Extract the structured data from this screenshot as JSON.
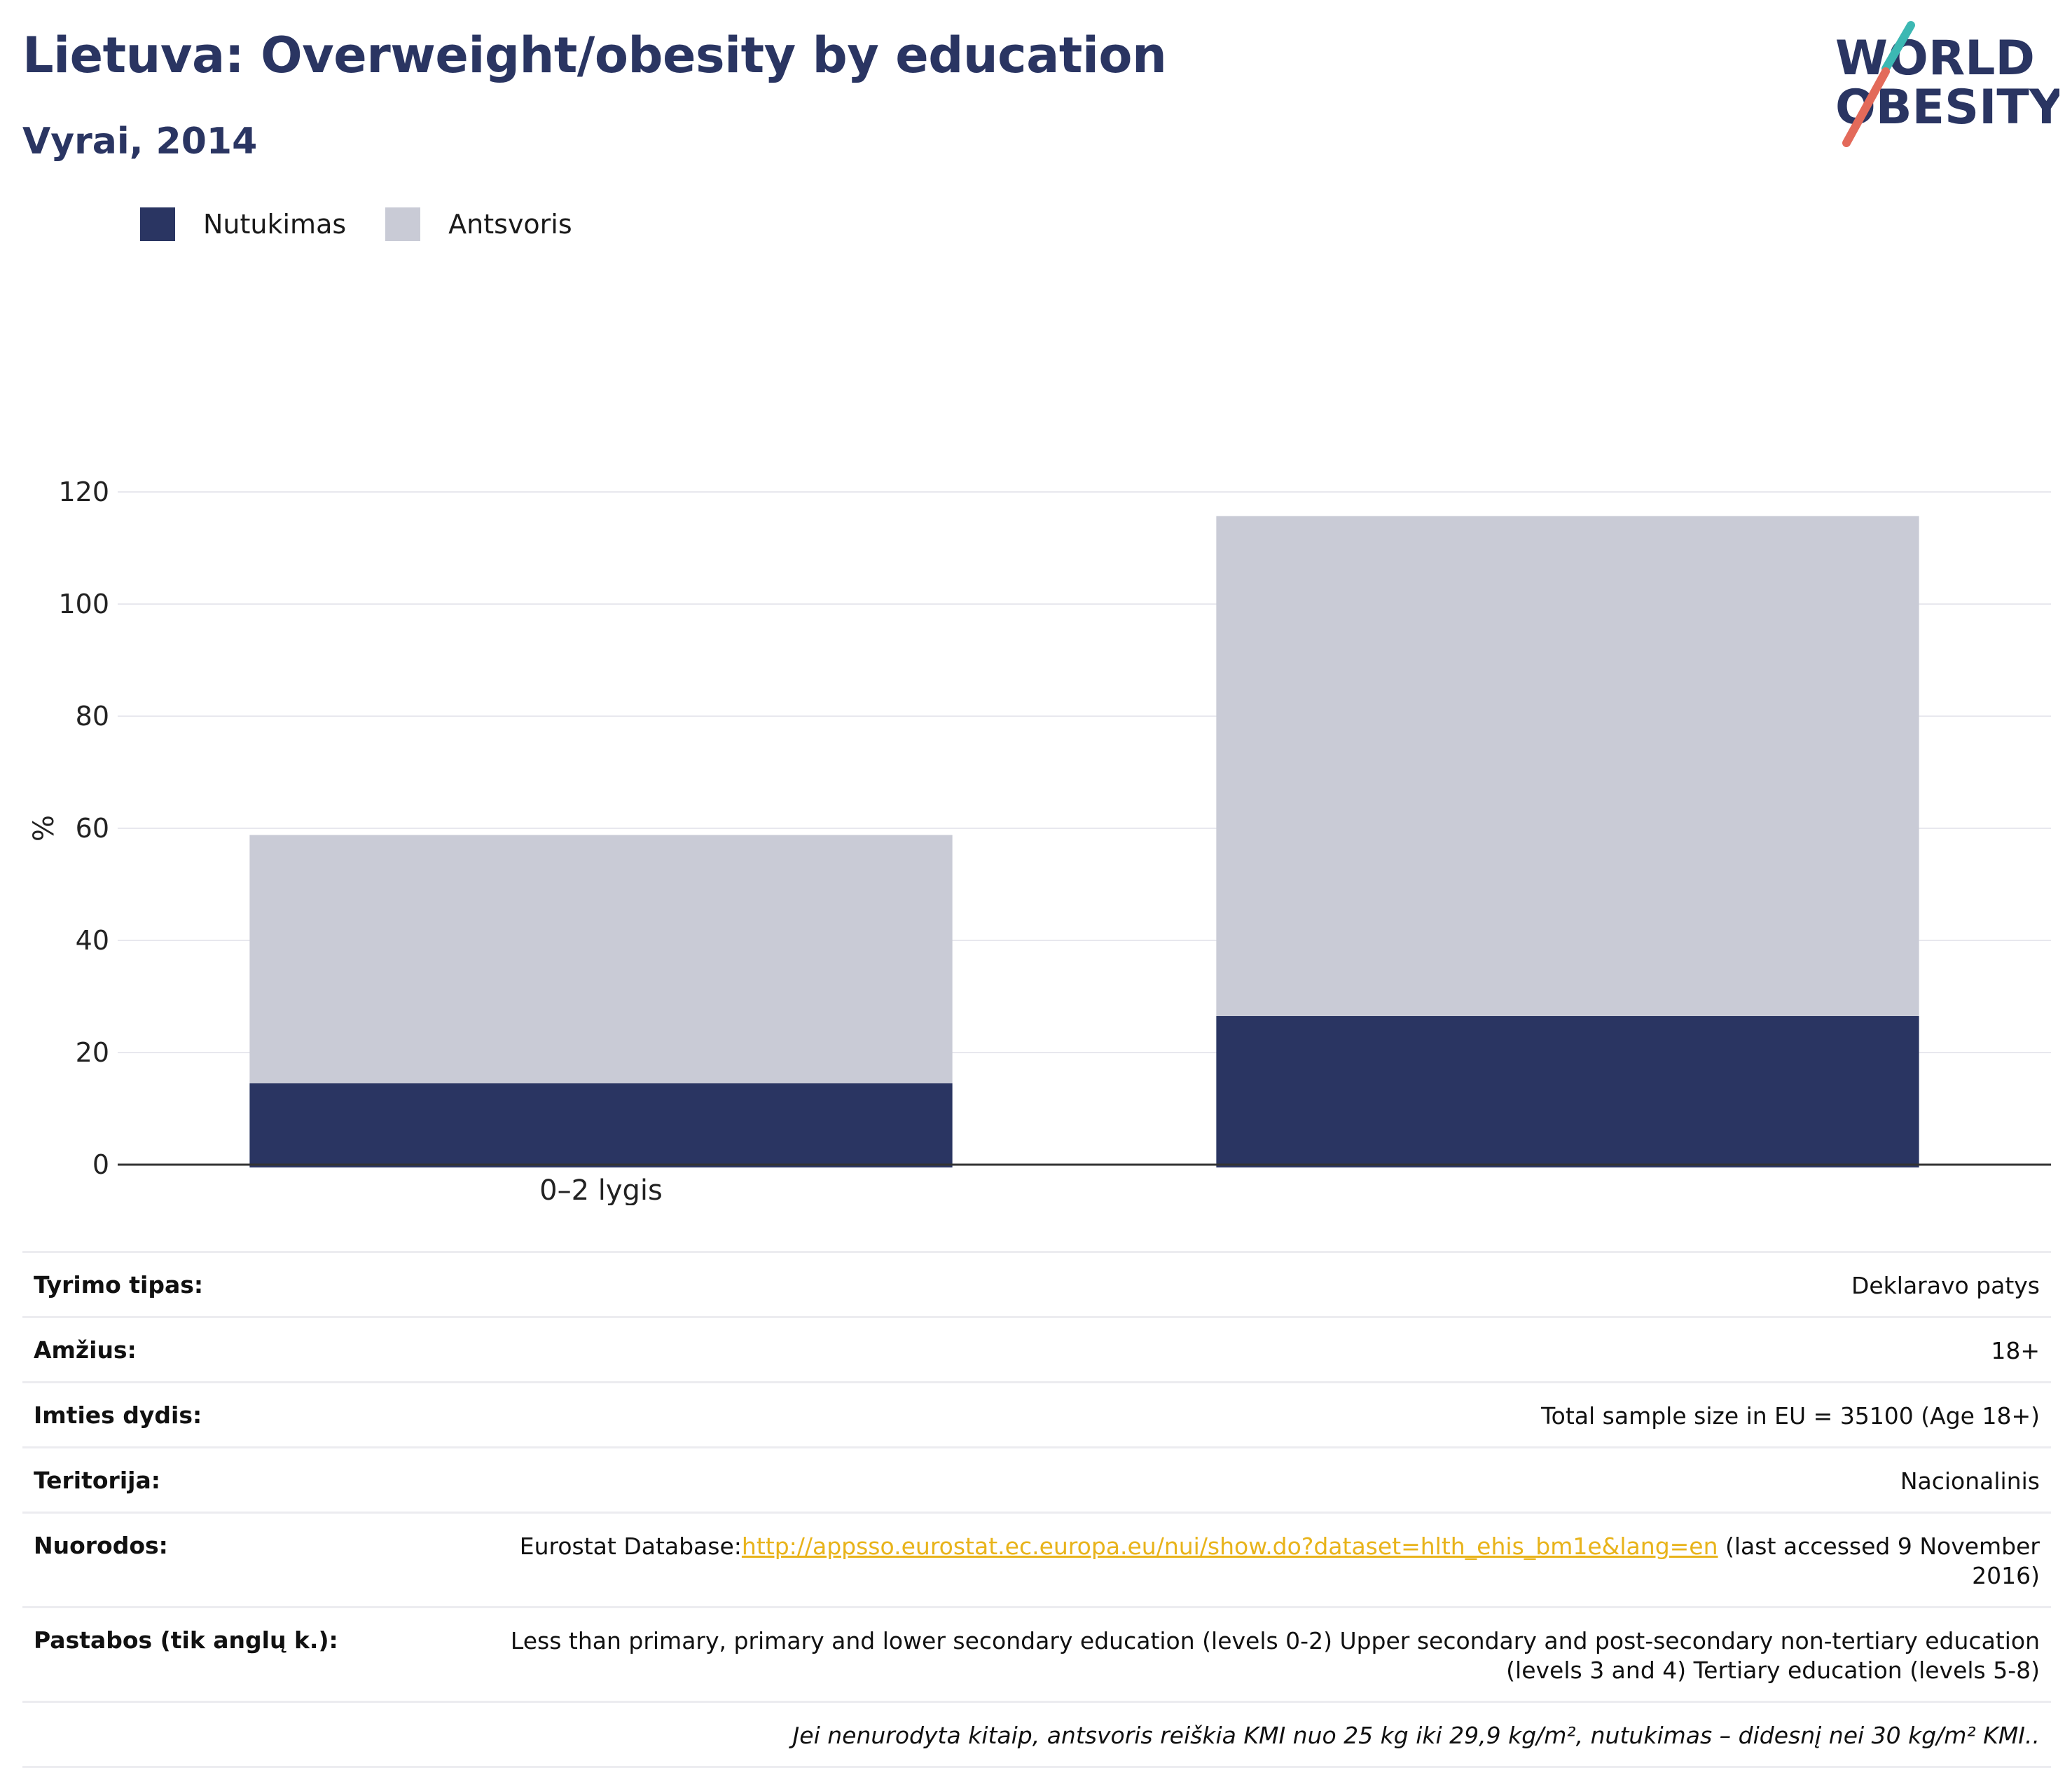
{
  "header": {
    "title": "Lietuva: Overweight/obesity by education",
    "subtitle": "Vyrai, 2014"
  },
  "logo": {
    "line1": "WORLD",
    "line2": "OBESITY"
  },
  "colors": {
    "obesity": "#2a3562",
    "overweight": "#c9cbd6",
    "title": "#2a3562",
    "link": "#e8b31a"
  },
  "legend": [
    {
      "label": "Nutukimas",
      "color": "#2a3562"
    },
    {
      "label": "Antsvoris",
      "color": "#c9cbd6"
    }
  ],
  "chart_data": {
    "type": "bar",
    "stacked": true,
    "categories": [
      "0–2 lygis",
      ""
    ],
    "series": [
      {
        "name": "Nutukimas",
        "values": [
          14.5,
          26.5
        ]
      },
      {
        "name": "Antsvoris",
        "values": [
          44.3,
          89.2
        ]
      }
    ],
    "ylabel": "%",
    "ylim": [
      0,
      120
    ],
    "yticks": [
      0,
      20,
      40,
      60,
      80,
      100,
      120
    ],
    "grid": true,
    "legend_position": "top-left"
  },
  "info": {
    "rows": [
      {
        "label": "Tyrimo tipas:",
        "value": "Deklaravo patys"
      },
      {
        "label": "Amžius:",
        "value": "18+"
      },
      {
        "label": "Imties dydis:",
        "value": "Total sample size in EU = 35100 (Age 18+)"
      },
      {
        "label": "Teritorija:",
        "value": "Nacionalinis"
      }
    ],
    "references": {
      "label": "Nuorodos:",
      "prefix": "Eurostat Database:",
      "link": "http://appsso.eurostat.ec.europa.eu/nui/show.do?dataset=hlth_ehis_bm1e&lang=en",
      "suffix": " (last accessed 9 November 2016)"
    },
    "notes": {
      "label": "Pastabos (tik anglų k.):",
      "value": "Less than primary, primary and lower secondary education (levels 0-2) Upper secondary and post-secondary non-tertiary education (levels 3 and 4) Tertiary education (levels 5-8)"
    },
    "footnote": "Jei nenurodyta kitaip, antsvoris reiškia KMI nuo 25 kg iki 29,9 kg/m², nutukimas – didesnį nei 30 kg/m² KMI.."
  }
}
